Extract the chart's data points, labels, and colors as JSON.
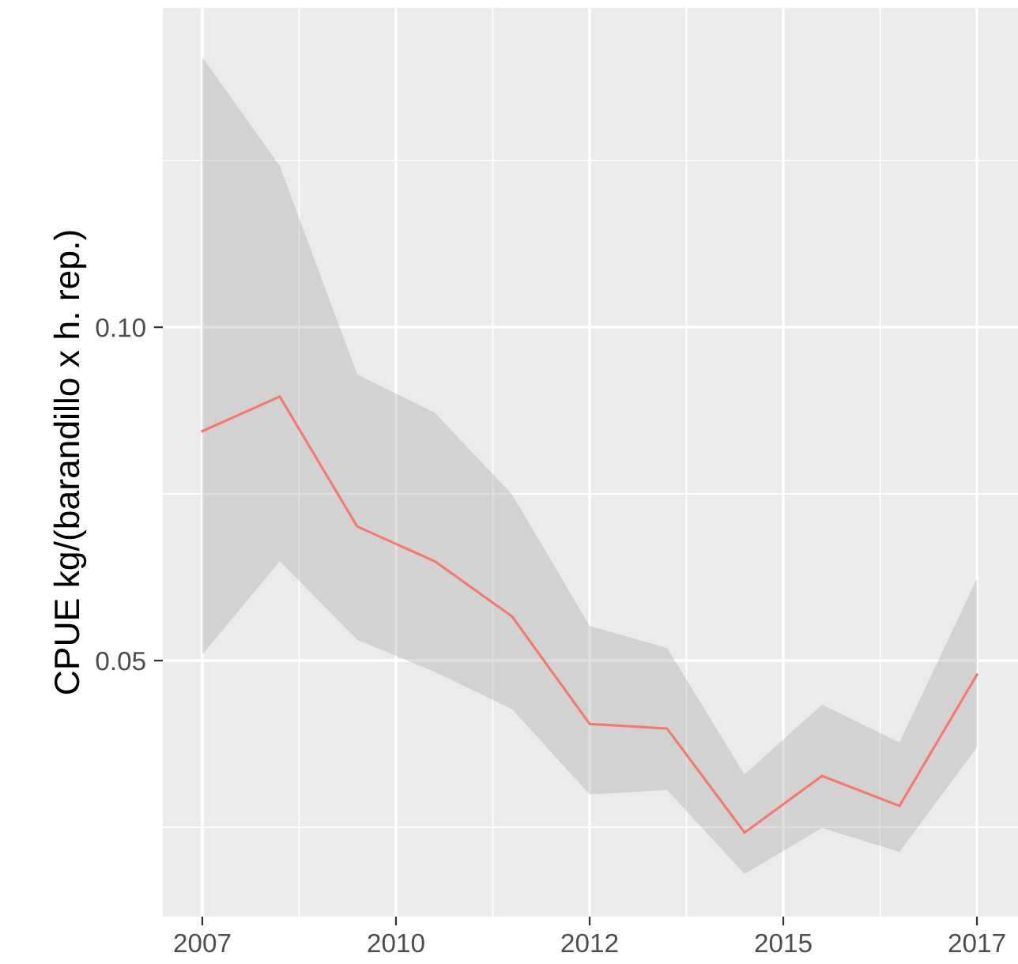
{
  "chart_data": {
    "type": "line",
    "ylabel": "CPUE kg/(barandillo x h. rep.)",
    "x": [
      2007,
      2008,
      2009,
      2010,
      2011,
      2012,
      2013,
      2014,
      2015,
      2016,
      2017
    ],
    "series": [
      {
        "color": "#f8766d",
        "values": [
          0.0844,
          0.0896,
          0.0701,
          0.0649,
          0.0566,
          0.0405,
          0.0398,
          0.0242,
          0.0327,
          0.0282,
          0.0479
        ],
        "upper": [
          0.1405,
          0.1242,
          0.0929,
          0.0872,
          0.0749,
          0.0552,
          0.0519,
          0.0329,
          0.0434,
          0.0377,
          0.0623
        ],
        "lower": [
          0.0509,
          0.0649,
          0.0531,
          0.0483,
          0.0427,
          0.0299,
          0.0306,
          0.018,
          0.0249,
          0.0213,
          0.037
        ]
      }
    ],
    "xlim": [
      2006.49,
      2017.53
    ],
    "xticks": [
      2007,
      {
        "value": 2009.5,
        "label": "2010"
      },
      2012,
      {
        "value": 2014.5,
        "label": "2015"
      },
      2017
    ],
    "ylim": [
      0.0116,
      0.1479
    ],
    "yticks": [
      0.05,
      {
        "value": 0.1,
        "label": "0.10"
      }
    ],
    "grid": true,
    "marker": "none",
    "line_style": "solid"
  }
}
